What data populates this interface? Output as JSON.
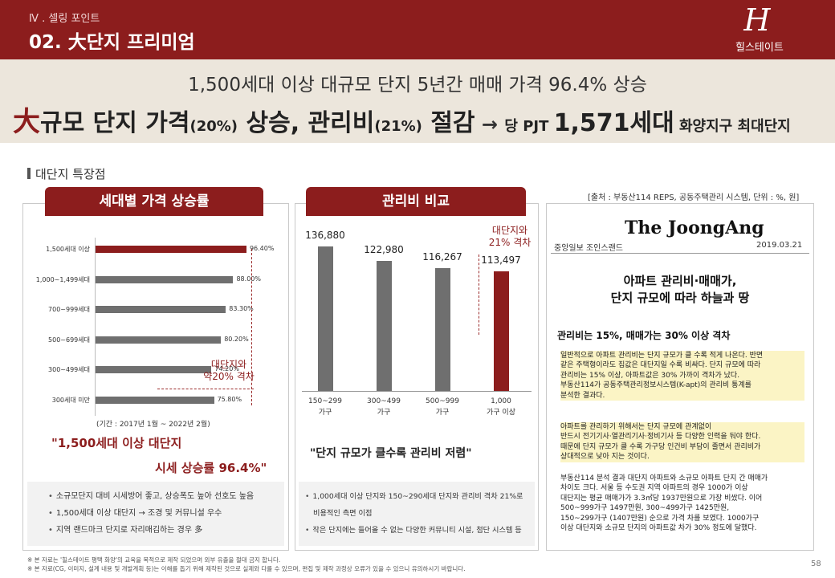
{
  "header": {
    "section": "Ⅳ . 셀링 포인트",
    "title": "02. 大단지 프리미엄",
    "logo_mark": "H",
    "logo_text": "힐스테이트"
  },
  "banner": {
    "line1": "1,500세대 이상 대규모 단지 5년간 매매 가격 96.4% 상승",
    "l2_a": "大",
    "l2_b": "규모 단지 가격",
    "l2_c": "(20%)",
    "l2_d": " 상승, 관리비",
    "l2_e": "(21%)",
    "l2_f": " 절감",
    "l2_arrow": " → ",
    "l2_g": "당 PJT ",
    "l2_h": "1,571세대",
    "l2_i": " 화양지구 최대단지"
  },
  "section_title": "대단지 특장점",
  "source": "[출처 : 부동산114 REPS, 공동주택관리 시스템, 단위 : %, 원]",
  "left_panel": {
    "tab": "세대별 가격 상승률",
    "annotation": "대단지와\n약20% 격차",
    "period": "(기간 : 2017년 1월 ~ 2022년 2월)",
    "quote_line1": "\"1,500세대 이상 대단지",
    "quote_line2": "시세 상승률 96.4%\"",
    "bullets": [
      "소규모단지 대비 시세방어 좋고, 상승폭도 높아 선호도 높음",
      "1,500세대 이상 대단지 → 조경 및 커뮤니설 우수",
      "지역 랜드마크 단지로 자리매김하는 경우 多"
    ]
  },
  "mid_panel": {
    "tab": "관리비 비교",
    "annotation": "대단지와\n21% 격차",
    "quote": "\"단지 규모가 클수록 관리비 저렴\"",
    "bullets": [
      "1,000세대 이상 단지와 150~290세대 단지와 관리비 격차 21%로",
      "비용적인 측면 이점",
      "작은 단지에는 들어올 수 없는 다양한 커뮤니티 시설, 첨단 시스템 등"
    ]
  },
  "news": {
    "logo": "The JoongAng",
    "outlet": "중앙일보 조인스랜드",
    "date": "2019.03.21",
    "headline1": "아파트 관리비·매매가,",
    "headline2": "단지 규모에 따라 하늘과 땅",
    "subhead": "관리비는 15%, 매매가는 30% 이상 격차",
    "p1": [
      "일반적으로 아파트 관리비는 단지 규모가 클 수록 적게 나온다. 반면",
      "같은 주택형이라도 집값은 대단지일 수록 비싸다. 단지 규모에 따라",
      "관리비는 15% 이상, 아파트값은 30% 가까이 격차가 났다.",
      "부동산114가 공동주택관리정보시스템(K-apt)의 관리비 통계를",
      "분석한 결과다."
    ],
    "p2": [
      "아파트를 관리하기 위해서는 단지 규모에 관계없이",
      "반드시 전기기사·열관리기사·정비기사 등 다양한 인력을 둬야 한다.",
      "때문에 단지 규모가 클 수록 가구당 인건비 부담이 줄면서 관리비가",
      "상대적으로 낮아 지는 것이다."
    ],
    "p3": [
      "부동산114 분석 결과 대단지 아파트와 소규모 아파트 단지 간 매매가",
      "차이도 크다. 서울 등 수도권 지역 아파트의 경우 1000가 이상",
      "대단지는 평균 매매가가 3.3㎡당 1937만원으로 가장 비쌌다. 이어",
      "500~999가구 1497만원, 300~499가구 1425만원,",
      "150~299가구 (1407만원) 순으로 가격 차를 보였다. 1000가구",
      "이상 대단지와 소규모 단지의 아파트값 차가 30% 정도에 달했다."
    ]
  },
  "footer": {
    "note1": "※ 본 자료는 '힐스테이트 평택 화양'의 교육을 목적으로 제작 되었으며 외부 유출을 절대 금지 합니다.",
    "note2": "※ 본 자료(CG, 이미지, 설계 내용 및 개발계획 등)는 이해를 돕기 위해 제작된 것으로 실제와 다를 수 있으며, 편집 및 제작 과정상 오류가 있을 수 있으니 유의하시기 바랍니다.",
    "page": "58"
  },
  "chart_data": [
    {
      "type": "bar",
      "orientation": "horizontal",
      "title": "세대별 가격 상승률",
      "categories": [
        "1,500세대 이상",
        "1,000~1,499세대",
        "700~999세대",
        "500~699세대",
        "300~499세대",
        "300세대 미만"
      ],
      "values": [
        96.4,
        88.0,
        83.3,
        80.2,
        74.2,
        75.8
      ],
      "value_labels": [
        "96.40%",
        "88.00%",
        "83.30%",
        "80.20%",
        "74.20%",
        "75.80%"
      ],
      "xlim": [
        0,
        100
      ],
      "highlight_color": "#8c1d1d",
      "bar_color": "#6f6f6f"
    },
    {
      "type": "bar",
      "title": "관리비 비교",
      "categories": [
        "150~299\n가구",
        "300~499\n가구",
        "500~999\n가구",
        "1,000\n가구 이상"
      ],
      "values": [
        136880,
        122980,
        116267,
        113497
      ],
      "value_labels": [
        "136,880",
        "122,980",
        "116,267",
        "113,497"
      ],
      "ylim": [
        0,
        140000
      ],
      "highlight_color": "#8c1d1d",
      "bar_color": "#6f6f6f"
    }
  ]
}
